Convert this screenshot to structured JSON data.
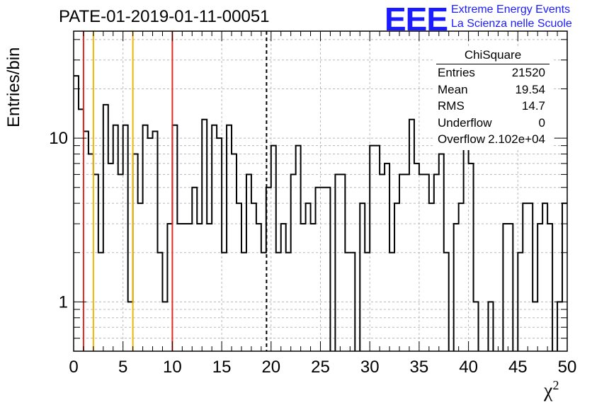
{
  "title": "PATE-01-2019-01-11-00051",
  "logo": {
    "mark": "EEE",
    "line1": "Extreme Energy Events",
    "line2": "La Scienza nelle Scuole",
    "color": "#1b1bff"
  },
  "stats": {
    "name": "ChiSquare",
    "rows": [
      {
        "label": "Entries",
        "value": "21520"
      },
      {
        "label": "Mean",
        "value": "19.54"
      },
      {
        "label": "RMS",
        "value": "14.7"
      },
      {
        "label": "Underflow",
        "value": "0"
      },
      {
        "label": "Overflow",
        "value": "2.102e+04"
      }
    ]
  },
  "chart_data": {
    "type": "histogram",
    "title": "PATE-01-2019-01-11-00051",
    "xlabel": "χ²",
    "ylabel": "Entries/bin",
    "xlim": [
      0,
      50
    ],
    "ylim": [
      0.5,
      45
    ],
    "yscale": "log",
    "bin_width": 0.5,
    "x_ticks": [
      0,
      5,
      10,
      15,
      20,
      25,
      30,
      35,
      40,
      45,
      50
    ],
    "y_tick_labels": [
      {
        "value": 1,
        "label": "1"
      },
      {
        "value": 10,
        "label": "10"
      }
    ],
    "grid": true,
    "values": [
      24,
      15,
      11,
      8,
      6,
      2,
      16,
      7,
      12,
      6,
      12,
      1,
      8,
      4,
      12,
      10,
      11,
      2,
      1,
      3,
      12,
      3,
      3,
      3,
      5,
      3,
      13,
      3,
      12,
      10,
      2,
      12,
      8,
      4,
      2,
      6,
      4,
      3,
      2,
      5,
      9,
      2,
      3,
      2,
      6,
      9,
      3,
      4,
      3,
      5,
      5,
      5,
      0,
      6,
      6,
      2,
      2,
      0,
      4,
      2,
      9,
      9,
      6,
      7,
      2,
      4,
      6,
      6,
      13,
      7,
      6,
      6,
      4,
      6,
      8,
      2,
      0,
      3,
      4,
      10,
      7,
      1,
      0,
      0,
      1,
      0,
      0,
      3,
      3,
      0,
      2,
      4,
      4,
      1,
      3,
      4,
      3,
      0,
      1,
      4
    ],
    "vertical_lines": [
      {
        "x": 1,
        "color": "#e32a1f",
        "style": "solid"
      },
      {
        "x": 2,
        "color": "#f5b400",
        "style": "solid"
      },
      {
        "x": 6,
        "color": "#f5b400",
        "style": "solid"
      },
      {
        "x": 10,
        "color": "#e32a1f",
        "style": "solid"
      },
      {
        "x": 19.54,
        "color": "#000000",
        "style": "dashed"
      }
    ]
  }
}
